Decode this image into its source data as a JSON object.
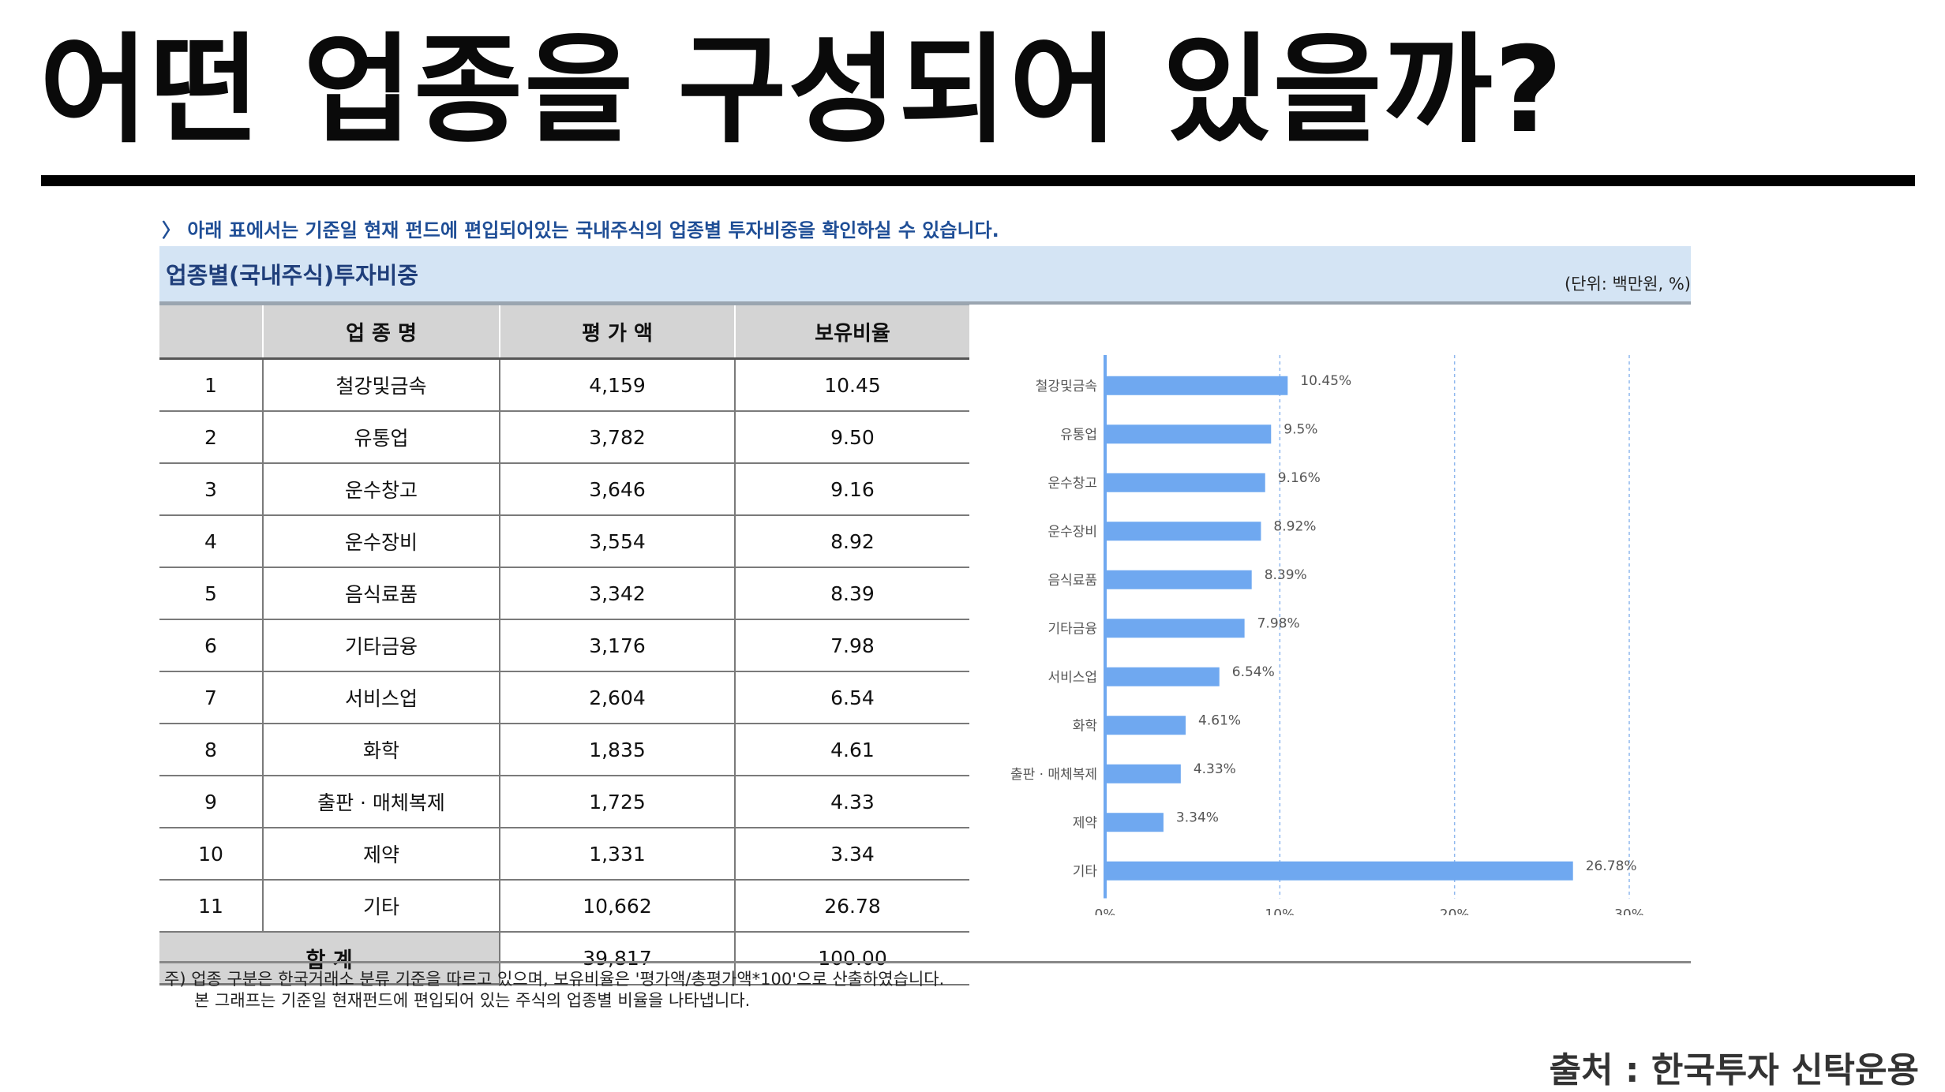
{
  "title": "어떤 업종을 구성되어 있을까?",
  "intro": "〉 아래 표에서는 기준일 현재 펀드에 편입되어있는 국내주식의 업종별 투자비중을 확인하실 수 있습니다.",
  "section_title": "업종별(국내주식)투자비중",
  "unit": "(단위: 백만원, %)",
  "table": {
    "headers": [
      "",
      "업 종 명",
      "평 가 액",
      "보유비율"
    ],
    "rows": [
      [
        "1",
        "철강및금속",
        "4,159",
        "10.45"
      ],
      [
        "2",
        "유통업",
        "3,782",
        "9.50"
      ],
      [
        "3",
        "운수창고",
        "3,646",
        "9.16"
      ],
      [
        "4",
        "운수장비",
        "3,554",
        "8.92"
      ],
      [
        "5",
        "음식료품",
        "3,342",
        "8.39"
      ],
      [
        "6",
        "기타금융",
        "3,176",
        "7.98"
      ],
      [
        "7",
        "서비스업",
        "2,604",
        "6.54"
      ],
      [
        "8",
        "화학",
        "1,835",
        "4.61"
      ],
      [
        "9",
        "출판 · 매체복제",
        "1,725",
        "4.33"
      ],
      [
        "10",
        "제약",
        "1,331",
        "3.34"
      ],
      [
        "11",
        "기타",
        "10,662",
        "26.78"
      ]
    ],
    "total": {
      "label": "합  계",
      "amount": "39,817",
      "ratio": "100.00"
    }
  },
  "chart_data": {
    "type": "bar",
    "orientation": "horizontal",
    "categories": [
      "철강및금속",
      "유통업",
      "운수창고",
      "운수장비",
      "음식료품",
      "기타금융",
      "서비스업",
      "화학",
      "출판 · 매체복제",
      "제약",
      "기타"
    ],
    "values": [
      10.45,
      9.5,
      9.16,
      8.92,
      8.39,
      7.98,
      6.54,
      4.61,
      4.33,
      3.34,
      26.78
    ],
    "value_labels": [
      "10.45%",
      "9.5%",
      "9.16%",
      "8.92%",
      "8.39%",
      "7.98%",
      "6.54%",
      "4.61%",
      "4.33%",
      "3.34%",
      "26.78%"
    ],
    "xlim": [
      0,
      30
    ],
    "x_ticks": [
      "0%",
      "10%",
      "20%",
      "30%"
    ],
    "grid": "vertical dashed",
    "bar_color": "#6fa8f0",
    "axis_color": "#6fa8f0"
  },
  "footnotes": [
    "주) 업종 구분은 한국거래소 분류 기준을 따르고 있으며, 보유비율은 '평가액/총평가액*100'으로 산출하였습니다.",
    "본 그래프는 기준일 현재펀드에 편입되어 있는 주식의 업종별 비율을 나타냅니다."
  ],
  "source": "출처 : 한국투자 신탁운용"
}
